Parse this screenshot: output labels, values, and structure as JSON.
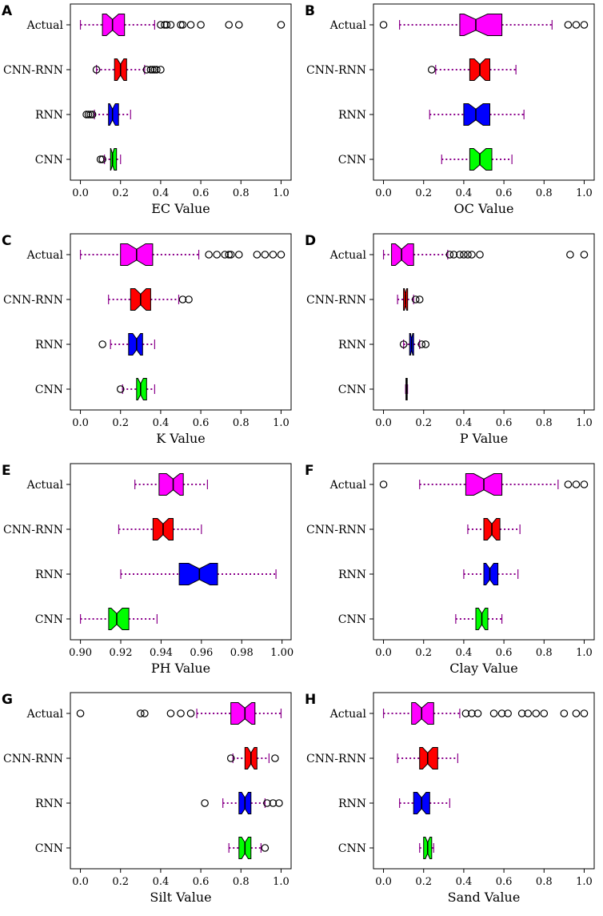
{
  "figure": {
    "categories": [
      "Actual",
      "CNN-RNN",
      "RNN",
      "CNN"
    ],
    "colors": {
      "Actual": "#ff00ff",
      "CNN-RNN": "#ff0000",
      "RNN": "#0000ff",
      "CNN": "#00ff00",
      "whisker": "#8b008b",
      "median": "#000000"
    }
  },
  "chart_data": [
    {
      "type": "boxplot",
      "panel": "A",
      "xlabel": "EC Value",
      "xlim": [
        -0.05,
        1.05
      ],
      "xticks": [
        0.0,
        0.2,
        0.4,
        0.6,
        0.8,
        1.0
      ],
      "xtick_labels": [
        "0.0",
        "0.2",
        "0.4",
        "0.6",
        "0.8",
        "1.0"
      ],
      "boxes": [
        {
          "label": "Actual",
          "wlo": 0.0,
          "q1": 0.11,
          "med": 0.16,
          "q3": 0.22,
          "whi": 0.37,
          "outliers": [
            0.4,
            0.42,
            0.43,
            0.45,
            0.5,
            0.51,
            0.55,
            0.6,
            0.74,
            0.79,
            1.0
          ]
        },
        {
          "label": "CNN-RNN",
          "wlo": 0.08,
          "q1": 0.17,
          "med": 0.2,
          "q3": 0.23,
          "whi": 0.32,
          "outliers": [
            0.08,
            0.33,
            0.35,
            0.36,
            0.37,
            0.38,
            0.4
          ]
        },
        {
          "label": "RNN",
          "wlo": 0.07,
          "q1": 0.14,
          "med": 0.16,
          "q3": 0.19,
          "whi": 0.25,
          "outliers": [
            0.03,
            0.04,
            0.05,
            0.06
          ]
        },
        {
          "label": "CNN",
          "wlo": 0.12,
          "q1": 0.15,
          "med": 0.16,
          "q3": 0.18,
          "whi": 0.2,
          "outliers": [
            0.1,
            0.11
          ]
        }
      ]
    },
    {
      "type": "boxplot",
      "panel": "B",
      "xlabel": "OC Value",
      "xlim": [
        -0.05,
        1.05
      ],
      "xticks": [
        0.0,
        0.2,
        0.4,
        0.6,
        0.8,
        1.0
      ],
      "xtick_labels": [
        "0.0",
        "0.2",
        "0.4",
        "0.6",
        "0.8",
        "1.0"
      ],
      "boxes": [
        {
          "label": "Actual",
          "wlo": 0.08,
          "q1": 0.38,
          "med": 0.46,
          "q3": 0.59,
          "whi": 0.84,
          "outliers": [
            0.0,
            0.92,
            0.96,
            1.0
          ]
        },
        {
          "label": "CNN-RNN",
          "wlo": 0.26,
          "q1": 0.43,
          "med": 0.48,
          "q3": 0.53,
          "whi": 0.66,
          "outliers": [
            0.24
          ]
        },
        {
          "label": "RNN",
          "wlo": 0.23,
          "q1": 0.4,
          "med": 0.46,
          "q3": 0.53,
          "whi": 0.7,
          "outliers": []
        },
        {
          "label": "CNN",
          "wlo": 0.29,
          "q1": 0.43,
          "med": 0.48,
          "q3": 0.54,
          "whi": 0.64,
          "outliers": []
        }
      ]
    },
    {
      "type": "boxplot",
      "panel": "C",
      "xlabel": "K Value",
      "xlim": [
        -0.05,
        1.05
      ],
      "xticks": [
        0.0,
        0.2,
        0.4,
        0.6,
        0.8,
        1.0
      ],
      "xtick_labels": [
        "0.0",
        "0.2",
        "0.4",
        "0.6",
        "0.8",
        "1.0"
      ],
      "boxes": [
        {
          "label": "Actual",
          "wlo": 0.0,
          "q1": 0.2,
          "med": 0.28,
          "q3": 0.36,
          "whi": 0.59,
          "outliers": [
            0.64,
            0.68,
            0.72,
            0.74,
            0.75,
            0.79,
            0.88,
            0.92,
            0.96,
            1.0
          ]
        },
        {
          "label": "CNN-RNN",
          "wlo": 0.14,
          "q1": 0.25,
          "med": 0.3,
          "q3": 0.35,
          "whi": 0.49,
          "outliers": [
            0.51,
            0.54
          ]
        },
        {
          "label": "RNN",
          "wlo": 0.15,
          "q1": 0.24,
          "med": 0.28,
          "q3": 0.31,
          "whi": 0.37,
          "outliers": [
            0.11
          ]
        },
        {
          "label": "CNN",
          "wlo": 0.21,
          "q1": 0.28,
          "med": 0.3,
          "q3": 0.33,
          "whi": 0.37,
          "outliers": [
            0.2
          ]
        }
      ]
    },
    {
      "type": "boxplot",
      "panel": "D",
      "xlabel": "P Value",
      "xlim": [
        -0.05,
        1.05
      ],
      "xticks": [
        0.0,
        0.2,
        0.4,
        0.6,
        0.8,
        1.0
      ],
      "xtick_labels": [
        "0.0",
        "0.2",
        "0.4",
        "0.6",
        "0.8",
        "1.0"
      ],
      "boxes": [
        {
          "label": "Actual",
          "wlo": 0.0,
          "q1": 0.04,
          "med": 0.09,
          "q3": 0.15,
          "whi": 0.32,
          "outliers": [
            0.33,
            0.35,
            0.38,
            0.4,
            0.42,
            0.44,
            0.48,
            0.93,
            1.0
          ]
        },
        {
          "label": "CNN-RNN",
          "wlo": 0.07,
          "q1": 0.1,
          "med": 0.11,
          "q3": 0.12,
          "whi": 0.15,
          "outliers": [
            0.16,
            0.18
          ]
        },
        {
          "label": "RNN",
          "wlo": 0.1,
          "q1": 0.13,
          "med": 0.14,
          "q3": 0.15,
          "whi": 0.18,
          "outliers": [
            0.1,
            0.19,
            0.21
          ]
        },
        {
          "label": "CNN",
          "wlo": 0.11,
          "q1": 0.112,
          "med": 0.115,
          "q3": 0.118,
          "whi": 0.12,
          "outliers": []
        }
      ]
    },
    {
      "type": "boxplot",
      "panel": "E",
      "xlabel": "PH Value",
      "xlim": [
        0.895,
        1.0045
      ],
      "xticks": [
        0.9,
        0.92,
        0.94,
        0.96,
        0.98,
        1.0
      ],
      "xtick_labels": [
        "0.90",
        "0.92",
        "0.94",
        "0.96",
        "0.98",
        "1.00"
      ],
      "boxes": [
        {
          "label": "Actual",
          "wlo": 0.927,
          "q1": 0.939,
          "med": 0.946,
          "q3": 0.951,
          "whi": 0.963,
          "outliers": []
        },
        {
          "label": "CNN-RNN",
          "wlo": 0.919,
          "q1": 0.936,
          "med": 0.941,
          "q3": 0.946,
          "whi": 0.96,
          "outliers": []
        },
        {
          "label": "RNN",
          "wlo": 0.92,
          "q1": 0.949,
          "med": 0.959,
          "q3": 0.968,
          "whi": 0.997,
          "outliers": []
        },
        {
          "label": "CNN",
          "wlo": 0.9,
          "q1": 0.914,
          "med": 0.918,
          "q3": 0.924,
          "whi": 0.938,
          "outliers": []
        }
      ]
    },
    {
      "type": "boxplot",
      "panel": "F",
      "xlabel": "Clay Value",
      "xlim": [
        -0.05,
        1.05
      ],
      "xticks": [
        0.0,
        0.2,
        0.4,
        0.6,
        0.8,
        1.0
      ],
      "xtick_labels": [
        "0.0",
        "0.2",
        "0.4",
        "0.6",
        "0.8",
        "1.0"
      ],
      "boxes": [
        {
          "label": "Actual",
          "wlo": 0.18,
          "q1": 0.41,
          "med": 0.5,
          "q3": 0.59,
          "whi": 0.87,
          "outliers": [
            0.0,
            0.92,
            0.96,
            1.0
          ]
        },
        {
          "label": "CNN-RNN",
          "wlo": 0.42,
          "q1": 0.5,
          "med": 0.54,
          "q3": 0.58,
          "whi": 0.68,
          "outliers": []
        },
        {
          "label": "RNN",
          "wlo": 0.4,
          "q1": 0.5,
          "med": 0.53,
          "q3": 0.57,
          "whi": 0.67,
          "outliers": []
        },
        {
          "label": "CNN",
          "wlo": 0.36,
          "q1": 0.46,
          "med": 0.49,
          "q3": 0.52,
          "whi": 0.59,
          "outliers": []
        }
      ]
    },
    {
      "type": "boxplot",
      "panel": "G",
      "xlabel": "Silt Value",
      "xlim": [
        -0.05,
        1.05
      ],
      "xticks": [
        0.0,
        0.2,
        0.4,
        0.6,
        0.8,
        1.0
      ],
      "xtick_labels": [
        "0.0",
        "0.2",
        "0.4",
        "0.6",
        "0.8",
        "1.0"
      ],
      "boxes": [
        {
          "label": "Actual",
          "wlo": 0.58,
          "q1": 0.75,
          "med": 0.82,
          "q3": 0.87,
          "whi": 1.0,
          "outliers": [
            0.0,
            0.3,
            0.32,
            0.45,
            0.5,
            0.55
          ]
        },
        {
          "label": "CNN-RNN",
          "wlo": 0.76,
          "q1": 0.82,
          "med": 0.85,
          "q3": 0.88,
          "whi": 0.94,
          "outliers": [
            0.75,
            0.97
          ]
        },
        {
          "label": "RNN",
          "wlo": 0.71,
          "q1": 0.79,
          "med": 0.82,
          "q3": 0.85,
          "whi": 0.92,
          "outliers": [
            0.62,
            0.93,
            0.96,
            0.99
          ]
        },
        {
          "label": "CNN",
          "wlo": 0.74,
          "q1": 0.79,
          "med": 0.82,
          "q3": 0.85,
          "whi": 0.9,
          "outliers": [
            0.92
          ]
        }
      ]
    },
    {
      "type": "boxplot",
      "panel": "H",
      "xlabel": "Sand Value",
      "xlim": [
        -0.05,
        1.05
      ],
      "xticks": [
        0.0,
        0.2,
        0.4,
        0.6,
        0.8,
        1.0
      ],
      "xtick_labels": [
        "0.0",
        "0.2",
        "0.4",
        "0.6",
        "0.8",
        "1.0"
      ],
      "boxes": [
        {
          "label": "Actual",
          "wlo": 0.0,
          "q1": 0.14,
          "med": 0.19,
          "q3": 0.25,
          "whi": 0.38,
          "outliers": [
            0.41,
            0.44,
            0.47,
            0.55,
            0.59,
            0.62,
            0.69,
            0.72,
            0.76,
            0.8,
            0.9,
            0.96,
            1.0
          ]
        },
        {
          "label": "CNN-RNN",
          "wlo": 0.07,
          "q1": 0.18,
          "med": 0.22,
          "q3": 0.27,
          "whi": 0.37,
          "outliers": []
        },
        {
          "label": "RNN",
          "wlo": 0.08,
          "q1": 0.15,
          "med": 0.19,
          "q3": 0.23,
          "whi": 0.33,
          "outliers": []
        },
        {
          "label": "CNN",
          "wlo": 0.18,
          "q1": 0.2,
          "med": 0.22,
          "q3": 0.24,
          "whi": 0.25,
          "outliers": []
        }
      ]
    }
  ]
}
